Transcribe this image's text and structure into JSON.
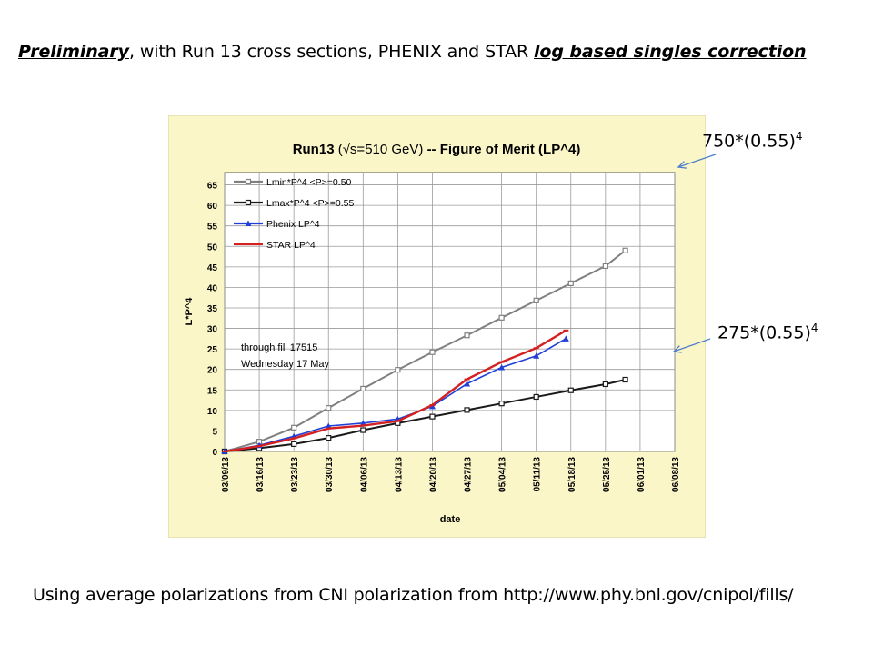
{
  "heading": {
    "part1": "Preliminary",
    "part2": ", with Run 13 cross sections, PHENIX and STAR ",
    "part3": "log based singles correction"
  },
  "footer": "Using average polarizations from CNI polarization from http://www.phy.bnl.gov/cnipol/fills/",
  "annotations": {
    "upper_base": "750*(0.55)",
    "upper_exp": "4",
    "lower_base": "275*(0.55)",
    "lower_exp": "4"
  },
  "colors": {
    "panel_bg": "#fbf6c8",
    "plot_bg": "#ffffff",
    "grid": "#9a9a9a",
    "lmin": "#808080",
    "lmax": "#1a1a1a",
    "phenix": "#1f3fd6",
    "star": "#d42020",
    "arrow": "#4f7fc8"
  },
  "chart_data": {
    "type": "line",
    "title_prefix": "Run13",
    "title_sqrt": "(√s=510 GeV)",
    "title_suffix": "-- Figure of Merit  (LP^4)",
    "xlabel": "date",
    "ylabel": "L*P^4",
    "ylim": [
      0,
      68
    ],
    "yticks": [
      0,
      5,
      10,
      15,
      20,
      25,
      30,
      35,
      40,
      45,
      50,
      55,
      60,
      65
    ],
    "xticks": [
      "03/09/13",
      "03/16/13",
      "03/23/13",
      "03/30/13",
      "04/06/13",
      "04/13/13",
      "04/20/13",
      "04/27/13",
      "05/04/13",
      "05/11/13",
      "05/18/13",
      "05/25/13",
      "06/01/13",
      "06/08/13"
    ],
    "grid": true,
    "legend_position": "top-left",
    "note_line1": "through fill 17515",
    "note_line2": "Wednesday 17 May",
    "series": [
      {
        "name": "Lmin*P^4      <P>=0.50",
        "marker": "square",
        "x": [
          "03/09/13",
          "03/16/13",
          "03/23/13",
          "03/30/13",
          "04/06/13",
          "04/13/13",
          "04/20/13",
          "04/27/13",
          "05/04/13",
          "05/11/13",
          "05/18/13",
          "05/25/13",
          "05/29/13"
        ],
        "values": [
          0,
          2.4,
          5.8,
          10.6,
          15.3,
          19.9,
          24.2,
          28.3,
          32.6,
          36.8,
          41.0,
          45.2,
          49.0
        ]
      },
      {
        "name": "Lmax*P^4      <P>=0.55",
        "marker": "square",
        "x": [
          "03/09/13",
          "03/16/13",
          "03/23/13",
          "03/30/13",
          "04/06/13",
          "04/13/13",
          "04/20/13",
          "04/27/13",
          "05/04/13",
          "05/11/13",
          "05/18/13",
          "05/25/13",
          "05/29/13"
        ],
        "values": [
          0,
          0.8,
          1.8,
          3.3,
          5.2,
          6.9,
          8.5,
          10.1,
          11.7,
          13.3,
          14.9,
          16.4,
          17.5
        ]
      },
      {
        "name": "Phenix LP^4",
        "marker": "triangle",
        "x": [
          "03/09/13",
          "03/16/13",
          "03/23/13",
          "03/30/13",
          "04/06/13",
          "04/13/13",
          "04/20/13",
          "04/27/13",
          "05/04/13",
          "05/11/13",
          "05/17/13"
        ],
        "values": [
          0,
          1.5,
          3.7,
          6.2,
          6.9,
          7.9,
          11.0,
          16.5,
          20.5,
          23.3,
          27.5
        ]
      },
      {
        "name": "STAR LP^4",
        "marker": "dash",
        "x": [
          "03/09/13",
          "03/16/13",
          "03/23/13",
          "03/30/13",
          "04/06/13",
          "04/13/13",
          "04/20/13",
          "04/27/13",
          "05/04/13",
          "05/11/13",
          "05/17/13"
        ],
        "values": [
          0,
          1.3,
          3.2,
          5.6,
          6.3,
          7.4,
          11.3,
          17.6,
          21.8,
          25.2,
          29.5
        ]
      }
    ]
  }
}
